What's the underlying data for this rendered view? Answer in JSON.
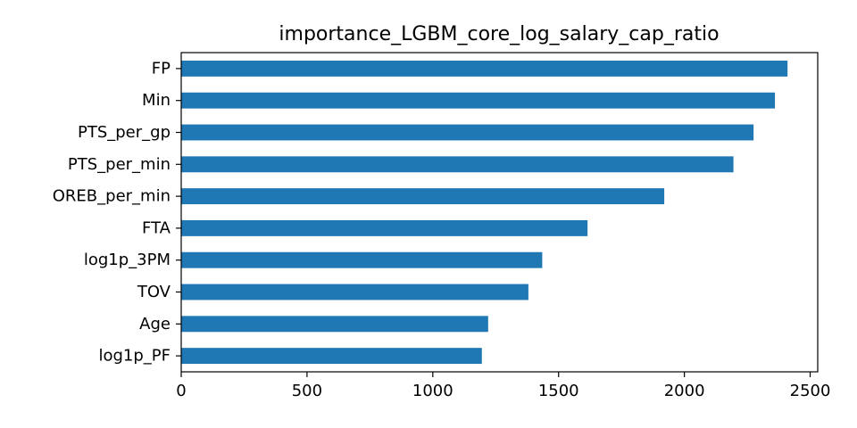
{
  "chart_data": {
    "type": "bar",
    "orientation": "horizontal",
    "title": "importance_LGBM_core_log_salary_cap_ratio",
    "xlabel": "",
    "ylabel": "",
    "categories": [
      "FP",
      "Min",
      "PTS_per_gp",
      "PTS_per_min",
      "OREB_per_min",
      "FTA",
      "log1p_3PM",
      "TOV",
      "Age",
      "log1p_PF"
    ],
    "values": [
      2410,
      2360,
      2275,
      2195,
      1920,
      1615,
      1435,
      1380,
      1220,
      1195
    ],
    "xlim": [
      0,
      2530
    ],
    "xticks": [
      0,
      500,
      1000,
      1500,
      2000,
      2500
    ],
    "grid": false,
    "bar_color": "#1f77b4"
  }
}
